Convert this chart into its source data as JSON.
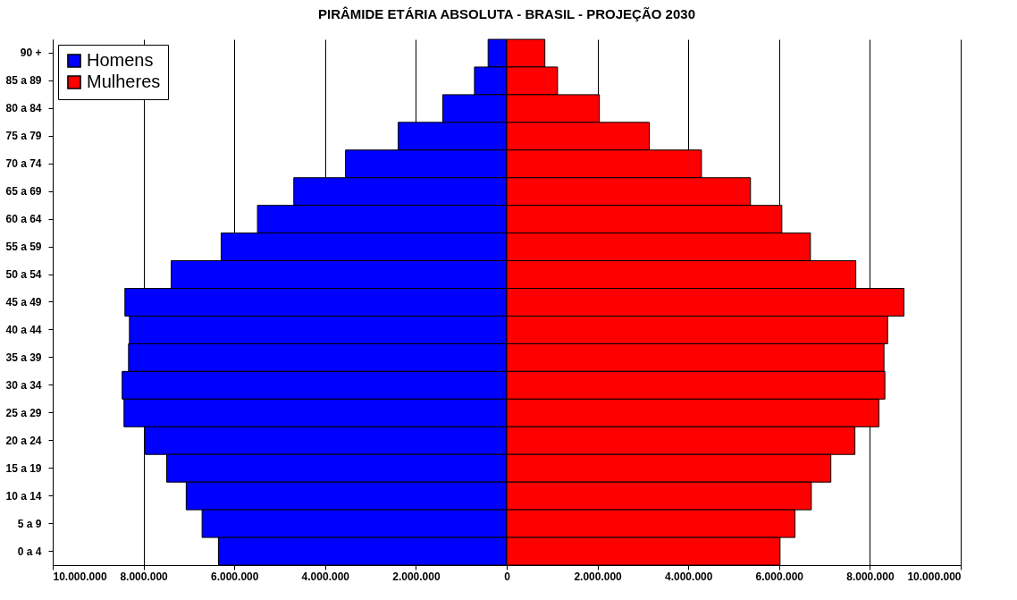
{
  "chart_data": {
    "type": "bar",
    "orientation": "horizontal",
    "title": "PIRÂMIDE ETÁRIA ABSOLUTA - BRASIL - PROJEÇÃO 2030",
    "categories": [
      "90 +",
      "85 a 89",
      "80 a 84",
      "75 a 79",
      "70 a 74",
      "65 a 69",
      "60 a 64",
      "55 a 59",
      "50 a 54",
      "45 a 49",
      "40 a 44",
      "35 a 39",
      "30 a 34",
      "25 a 29",
      "20 a 24",
      "15 a 19",
      "10 a 14",
      "5 a 9",
      "0 a 4"
    ],
    "series": [
      {
        "name": "Homens",
        "color": "#0000ff",
        "values": [
          -410000,
          -710000,
          -1410000,
          -2390000,
          -3550000,
          -4690000,
          -5490000,
          -6290000,
          -7390000,
          -8410000,
          -8310000,
          -8330000,
          -8470000,
          -8430000,
          -7960000,
          -7490000,
          -7060000,
          -6710000,
          -6350000
        ]
      },
      {
        "name": "Mulheres",
        "color": "#ff0000",
        "values": [
          840000,
          1120000,
          2040000,
          3140000,
          4290000,
          5370000,
          6060000,
          6690000,
          7690000,
          8750000,
          8390000,
          8310000,
          8330000,
          8200000,
          7670000,
          7140000,
          6710000,
          6350000,
          6020000
        ]
      }
    ],
    "xlim": [
      -10000000,
      10000000
    ],
    "xticks": [
      {
        "value": -10000000,
        "label": "10.000.000"
      },
      {
        "value": -8000000,
        "label": "8.000.000"
      },
      {
        "value": -6000000,
        "label": "6.000.000"
      },
      {
        "value": -4000000,
        "label": "4.000.000"
      },
      {
        "value": -2000000,
        "label": "2.000.000"
      },
      {
        "value": 0,
        "label": "0"
      },
      {
        "value": 2000000,
        "label": "2.000.000"
      },
      {
        "value": 4000000,
        "label": "4.000.000"
      },
      {
        "value": 6000000,
        "label": "6.000.000"
      },
      {
        "value": 8000000,
        "label": "8.000.000"
      },
      {
        "value": 10000000,
        "label": "10.000.000"
      }
    ],
    "grid": "x",
    "legend": "top left",
    "stacked": true
  }
}
